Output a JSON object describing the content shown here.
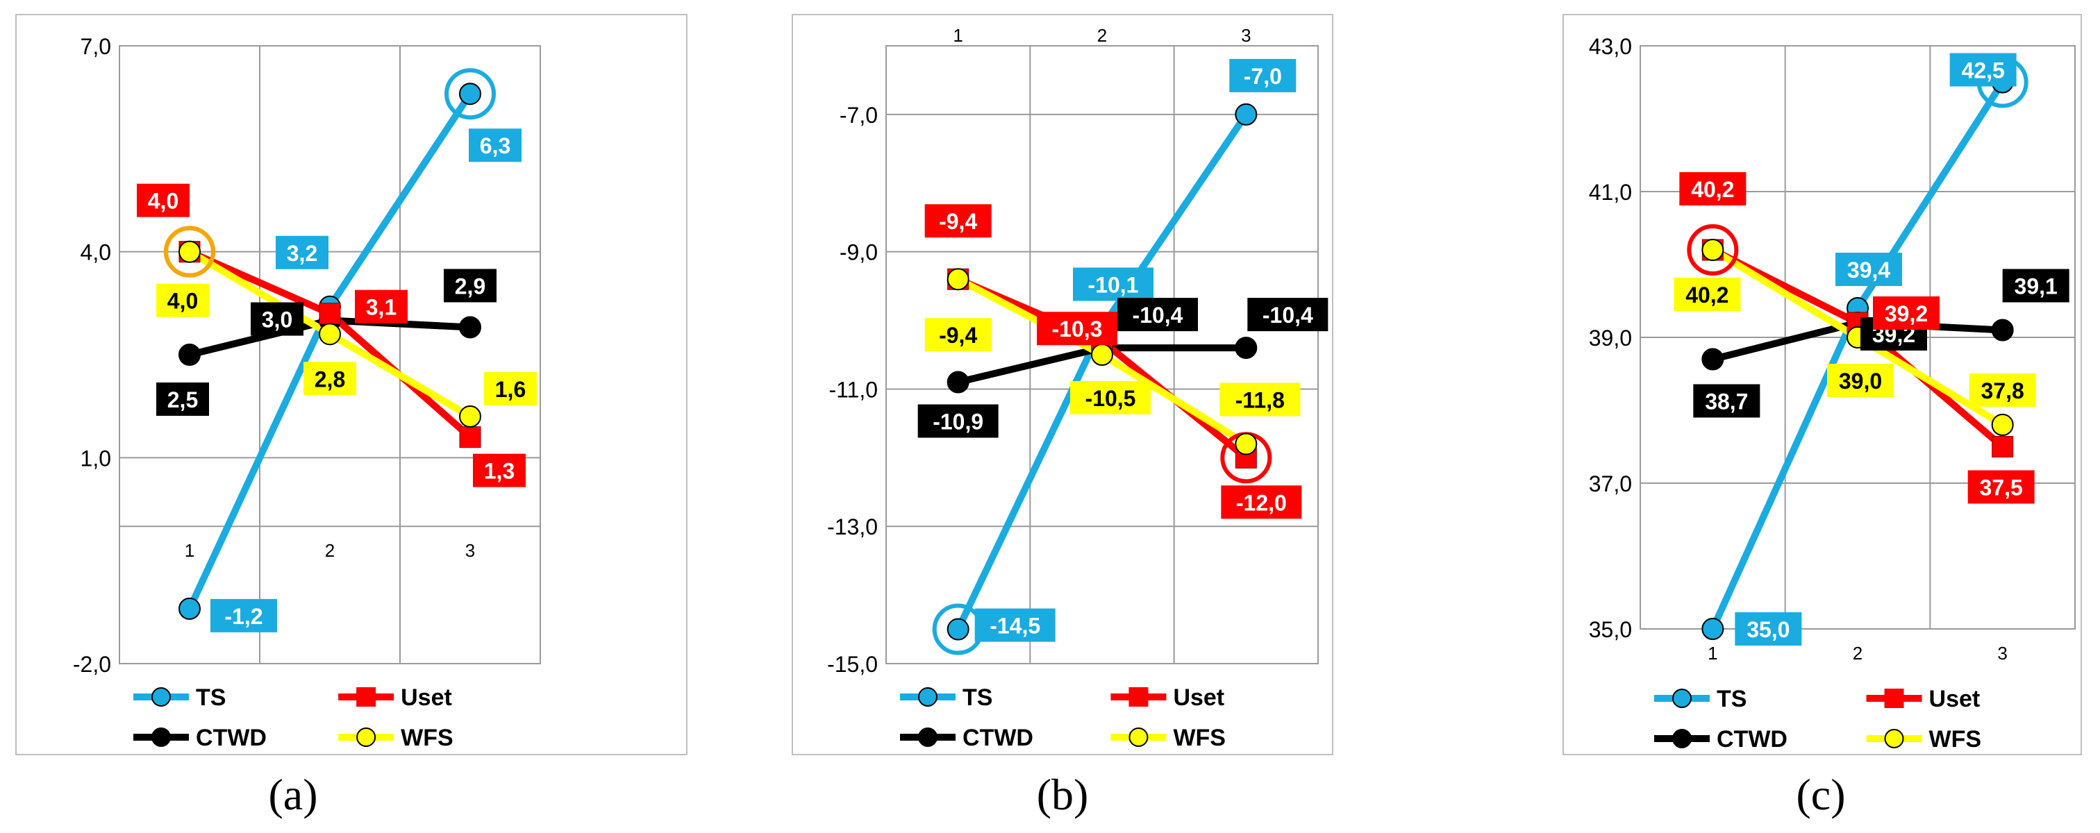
{
  "figure": {
    "captions": [
      "(a)",
      "(b)",
      "(c)"
    ]
  },
  "colors": {
    "TS": "#1aace0",
    "Uset": "#ff0000",
    "CTWD": "#000000",
    "WFS": "#ffff00",
    "grid": "#9a9a9a"
  },
  "chart_data": [
    {
      "type": "line",
      "categories": [
        "1",
        "2",
        "3"
      ],
      "ylim": [
        -2.0,
        7.0
      ],
      "yticks": [
        "7,0",
        "4,0",
        "1,0",
        "-2,0"
      ],
      "ytick_values": [
        7.0,
        4.0,
        1.0,
        -2.0
      ],
      "category_axis_at": 0.0,
      "grid": true,
      "legend": "bottom",
      "series": [
        {
          "name": "TS",
          "marker": "circle",
          "values": [
            -1.2,
            3.2,
            6.3
          ],
          "labels": [
            "-1,2",
            "3,2",
            "6,3"
          ],
          "highlight": [
            2
          ]
        },
        {
          "name": "Uset",
          "marker": "square",
          "values": [
            4.0,
            3.1,
            1.3
          ],
          "labels": [
            "4,0",
            "3,1",
            "1,3"
          ],
          "highlight": [
            0
          ]
        },
        {
          "name": "CTWD",
          "marker": "circle",
          "values": [
            2.5,
            3.0,
            2.9
          ],
          "labels": [
            "2,5",
            "3,0",
            "2,9"
          ],
          "highlight": []
        },
        {
          "name": "WFS",
          "marker": "circle",
          "values": [
            4.0,
            2.8,
            1.6
          ],
          "labels": [
            "4,0",
            "2,8",
            "1,6"
          ],
          "highlight": [
            0
          ]
        }
      ]
    },
    {
      "type": "line",
      "categories": [
        "1",
        "2",
        "3"
      ],
      "ylim": [
        -15.0,
        -6.0
      ],
      "yticks": [
        "-7,0",
        "-9,0",
        "-11,0",
        "-13,0",
        "-15,0"
      ],
      "ytick_values": [
        -7.0,
        -9.0,
        -11.0,
        -13.0,
        -15.0
      ],
      "category_axis_at": "top",
      "grid": true,
      "legend": "bottom",
      "series": [
        {
          "name": "TS",
          "marker": "circle",
          "values": [
            -14.5,
            -10.1,
            -7.0
          ],
          "labels": [
            "-14,5",
            "-10,1",
            "-7,0"
          ],
          "highlight": [
            0
          ]
        },
        {
          "name": "Uset",
          "marker": "square",
          "values": [
            -9.4,
            -10.3,
            -12.0
          ],
          "labels": [
            "-9,4",
            "-10,3",
            "-12,0"
          ],
          "highlight": [
            2
          ]
        },
        {
          "name": "CTWD",
          "marker": "circle",
          "values": [
            -10.9,
            -10.4,
            -10.4
          ],
          "labels": [
            "-10,9",
            "-10,4",
            "-10,4"
          ],
          "highlight": []
        },
        {
          "name": "WFS",
          "marker": "circle",
          "values": [
            -9.4,
            -10.5,
            -11.8
          ],
          "labels": [
            "-9,4",
            "-10,5",
            "-11,8"
          ],
          "highlight": []
        }
      ]
    },
    {
      "type": "line",
      "categories": [
        "1",
        "2",
        "3"
      ],
      "ylim": [
        35.0,
        43.0
      ],
      "yticks": [
        "43,0",
        "41,0",
        "39,0",
        "37,0",
        "35,0"
      ],
      "ytick_values": [
        43.0,
        41.0,
        39.0,
        37.0,
        35.0
      ],
      "category_axis_at": "bottom",
      "grid": true,
      "legend": "bottom",
      "series": [
        {
          "name": "TS",
          "marker": "circle",
          "values": [
            35.0,
            39.4,
            42.5
          ],
          "labels": [
            "35,0",
            "39,4",
            "42,5"
          ],
          "highlight": [
            2
          ]
        },
        {
          "name": "Uset",
          "marker": "square",
          "values": [
            40.2,
            39.2,
            37.5
          ],
          "labels": [
            "40,2",
            "39,2",
            "37,5"
          ],
          "highlight": [
            0
          ]
        },
        {
          "name": "CTWD",
          "marker": "circle",
          "values": [
            38.7,
            39.2,
            39.1
          ],
          "labels": [
            "38,7",
            "39,2",
            "39,1"
          ],
          "highlight": []
        },
        {
          "name": "WFS",
          "marker": "circle",
          "values": [
            40.2,
            39.0,
            37.8
          ],
          "labels": [
            "40,2",
            "39,0",
            "37,8"
          ],
          "highlight": []
        }
      ]
    }
  ]
}
